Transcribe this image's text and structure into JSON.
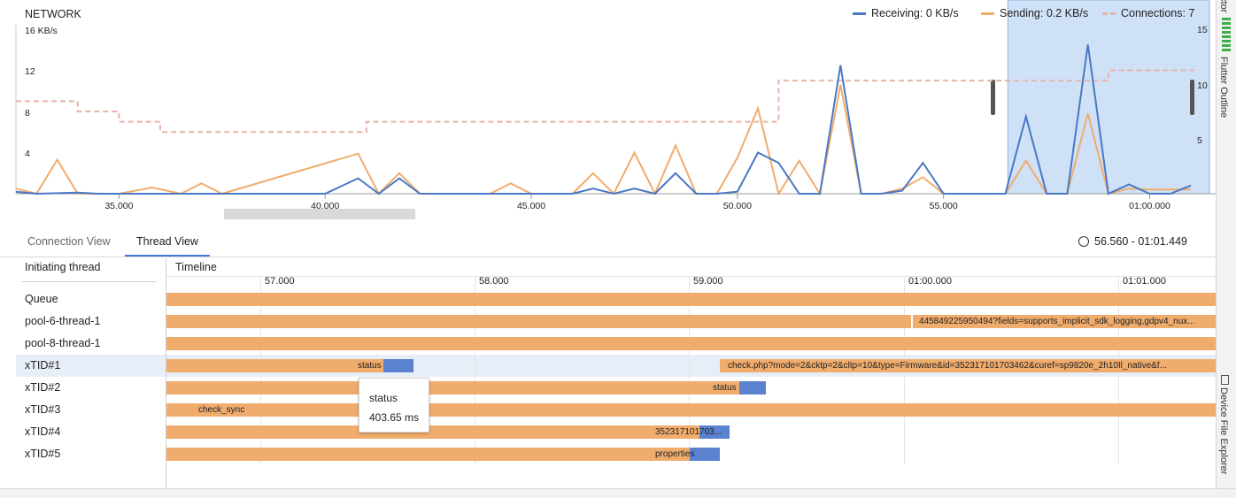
{
  "network": {
    "title": "NETWORK",
    "left_axis_unit": "16 KB/s",
    "left_ticks": [
      "12",
      "8",
      "4"
    ],
    "right_ticks": [
      "15",
      "10",
      "5"
    ],
    "x_ticks": [
      "35.000",
      "40.000",
      "45.000",
      "50.000",
      "55.000",
      "01:00.000"
    ],
    "legend": {
      "receiving": "Receiving: 0 KB/s",
      "sending": "Sending: 0.2 KB/s",
      "connections": "Connections: 7"
    },
    "colors": {
      "receiving": "#4a78c4",
      "sending": "#f0ac6d",
      "connections": "#e8b4a8",
      "selection": "#cfe1f6"
    }
  },
  "chart_data": {
    "type": "line",
    "x_unit": "seconds",
    "left_ylim": [
      0,
      16
    ],
    "right_ylim": [
      0,
      16
    ],
    "series": [
      {
        "name": "Receiving",
        "axis": "left",
        "x": [
          32.5,
          33.0,
          34.0,
          34.5,
          35.0,
          36.0,
          37.0,
          38.0,
          39.0,
          40.0,
          40.8,
          41.3,
          41.8,
          42.3,
          42.8,
          43.3,
          44.5,
          45.0,
          46.0,
          46.5,
          47.0,
          47.5,
          48.0,
          48.5,
          49.0,
          49.5,
          50.0,
          50.5,
          51.0,
          51.5,
          52.0,
          52.5,
          53.0,
          53.5,
          54.0,
          54.5,
          55.0,
          55.5,
          56.0,
          56.5,
          57.0,
          57.5,
          58.0,
          58.5,
          59.0,
          59.5,
          60.0,
          60.5,
          61.0
        ],
        "values": [
          0.2,
          0,
          0.1,
          0,
          0,
          0,
          0,
          0,
          0,
          0,
          1.5,
          0,
          1.5,
          0,
          0,
          0,
          0,
          0,
          0,
          0.5,
          0,
          0.5,
          0,
          2.0,
          0,
          0,
          0.2,
          4.0,
          3.0,
          0,
          0,
          12.5,
          0,
          0,
          0.3,
          3.0,
          0,
          0,
          0,
          0,
          7.5,
          0,
          0,
          14.5,
          0,
          0.9,
          0,
          0,
          0.8
        ]
      },
      {
        "name": "Sending",
        "axis": "left",
        "x": [
          32.5,
          33.0,
          33.5,
          34.0,
          35.0,
          35.8,
          36.5,
          37.0,
          37.5,
          40.8,
          41.3,
          41.8,
          42.3,
          44.0,
          44.5,
          45.0,
          46.0,
          46.5,
          47.0,
          47.5,
          48.0,
          48.5,
          49.0,
          49.5,
          50.0,
          50.5,
          51.0,
          51.5,
          52.0,
          52.5,
          53.0,
          53.5,
          54.0,
          54.5,
          55.0,
          55.5,
          56.0,
          56.5,
          57.0,
          57.5,
          58.0,
          58.5,
          59.0,
          59.5,
          60.0,
          60.5,
          61.0
        ],
        "values": [
          0.5,
          0,
          3.3,
          0,
          0,
          0.6,
          0,
          1.0,
          0,
          3.9,
          0,
          2.0,
          0,
          0,
          1.0,
          0,
          0,
          2.0,
          0,
          4.0,
          0,
          4.7,
          0,
          0,
          3.5,
          8.3,
          0,
          3.2,
          0,
          10.6,
          0,
          0,
          0.5,
          1.6,
          0,
          0,
          0,
          0,
          3.2,
          0,
          0,
          7.8,
          0,
          0.5,
          0.4,
          0.4,
          0.4
        ]
      },
      {
        "name": "Connections",
        "axis": "right",
        "x": [
          32.5,
          33.2,
          34.0,
          34.5,
          35.0,
          35.5,
          36.0,
          40.5,
          41.0,
          45.0,
          50.0,
          50.5,
          51.0,
          55.0,
          56.0,
          58.0,
          59.0,
          60.0,
          61.0
        ],
        "values": [
          9,
          9,
          8,
          8,
          7,
          7,
          6,
          6,
          7,
          7,
          7,
          7,
          11,
          11,
          11,
          11,
          12,
          12,
          12
        ]
      }
    ],
    "selection_range": [
      56.56,
      61.449
    ]
  },
  "tabs": {
    "connection_view": "Connection View",
    "thread_view": "Thread View"
  },
  "range_text": "56.560 - 01:01.449",
  "threads": {
    "header": "Initiating thread",
    "names": [
      "Queue",
      "pool-6-thread-1",
      "pool-8-thread-1",
      "xTID#1",
      "xTID#2",
      "xTID#3",
      "xTID#4",
      "xTID#5"
    ],
    "selected_index": 3
  },
  "timeline": {
    "header": "Timeline",
    "tick_labels": [
      "57.000",
      "58.000",
      "59.000",
      "01:00.000",
      "01:01.000"
    ],
    "bar_labels": {
      "pool6": "445849225950494?fields=supports_implicit_sdk_logging,gdpv4_nux...",
      "xtid1_a": "status",
      "xtid1_b": "check.php?mode=2&cktp=2&cltp=10&type=Firmware&id=352317101703462&curef=sp9820e_2h10Il_native&f...",
      "xtid2": "status",
      "xtid3": "check_sync",
      "xtid4": "352317101703...",
      "xtid5": "properties"
    }
  },
  "tooltip": {
    "name": "status",
    "duration": "403.65 ms"
  },
  "side_tabs": {
    "top_cut": "ctor",
    "flutter_outline": "Flutter Outline",
    "device_file_explorer": "Device File Explorer"
  }
}
